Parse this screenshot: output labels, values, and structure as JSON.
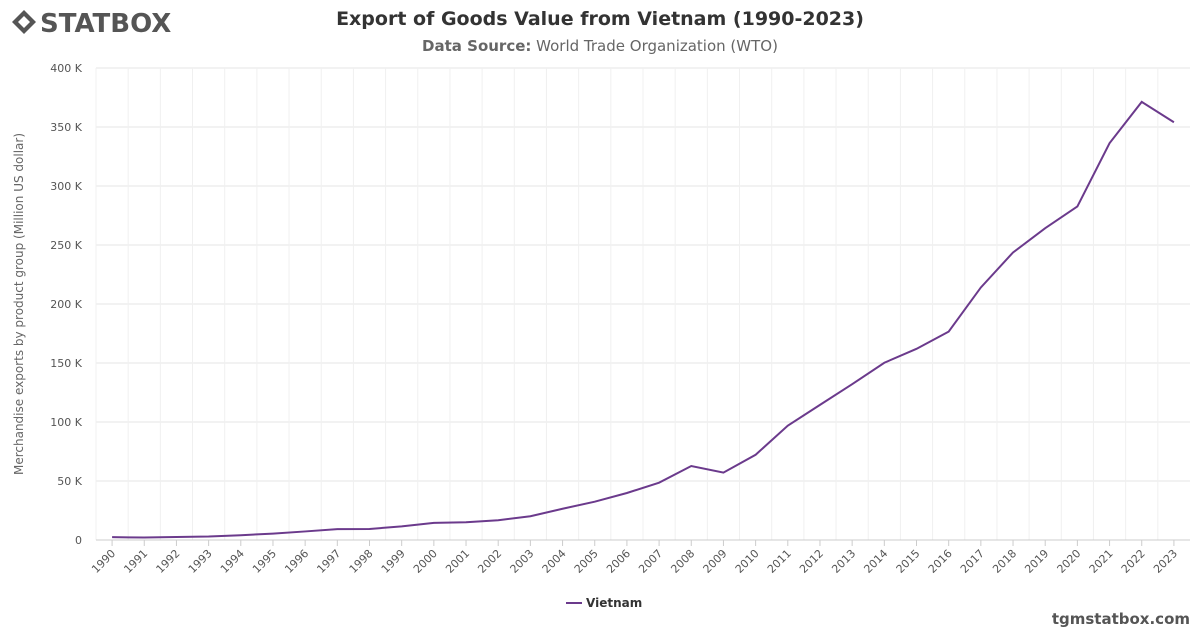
{
  "chart_data": {
    "type": "line",
    "logo": "STATBOX",
    "title": "Export of Goods Value from Vietnam (1990-2023)",
    "subtitle_label": "Data Source:",
    "subtitle": "World Trade Organization (WTO)",
    "y_label": "Merchandise exports by product group (Million US dollar)",
    "watermark": "tgmstatbox.com",
    "categories": [
      "1990",
      "1991",
      "1992",
      "1993",
      "1994",
      "1995",
      "1996",
      "1997",
      "1998",
      "1999",
      "2000",
      "2001",
      "2002",
      "2003",
      "2004",
      "2005",
      "2006",
      "2007",
      "2008",
      "2009",
      "2010",
      "2011",
      "2012",
      "2013",
      "2014",
      "2015",
      "2016",
      "2017",
      "2018",
      "2019",
      "2020",
      "2021",
      "2022",
      "2023"
    ],
    "series": [
      {
        "name": "Vietnam",
        "color": "#6b3a8c",
        "values": [
          2404,
          2087,
          2581,
          2985,
          4054,
          5449,
          7256,
          9185,
          9361,
          11540,
          14483,
          15029,
          16706,
          20149,
          26485,
          32447,
          39826,
          48561,
          62685,
          57096,
          72237,
          96906,
          114529,
          132033,
          150217,
          162017,
          176581,
          214020,
          243697,
          264267,
          282655,
          336310,
          371304,
          354000
        ]
      }
    ],
    "ylim": [
      0,
      400000
    ],
    "yticks": [
      0,
      {
        "value": 50000,
        "label": "50 K"
      },
      {
        "value": 100000,
        "label": "100 K"
      },
      {
        "value": 150000,
        "label": "150 K"
      },
      {
        "value": 200000,
        "label": "200 K"
      },
      {
        "value": 250000,
        "label": "250 K"
      },
      {
        "value": 300000,
        "label": "300 K"
      },
      {
        "value": 350000,
        "label": "350 K"
      },
      {
        "value": 400000,
        "label": "400 K"
      }
    ],
    "grid": true,
    "legend": "bottom"
  }
}
